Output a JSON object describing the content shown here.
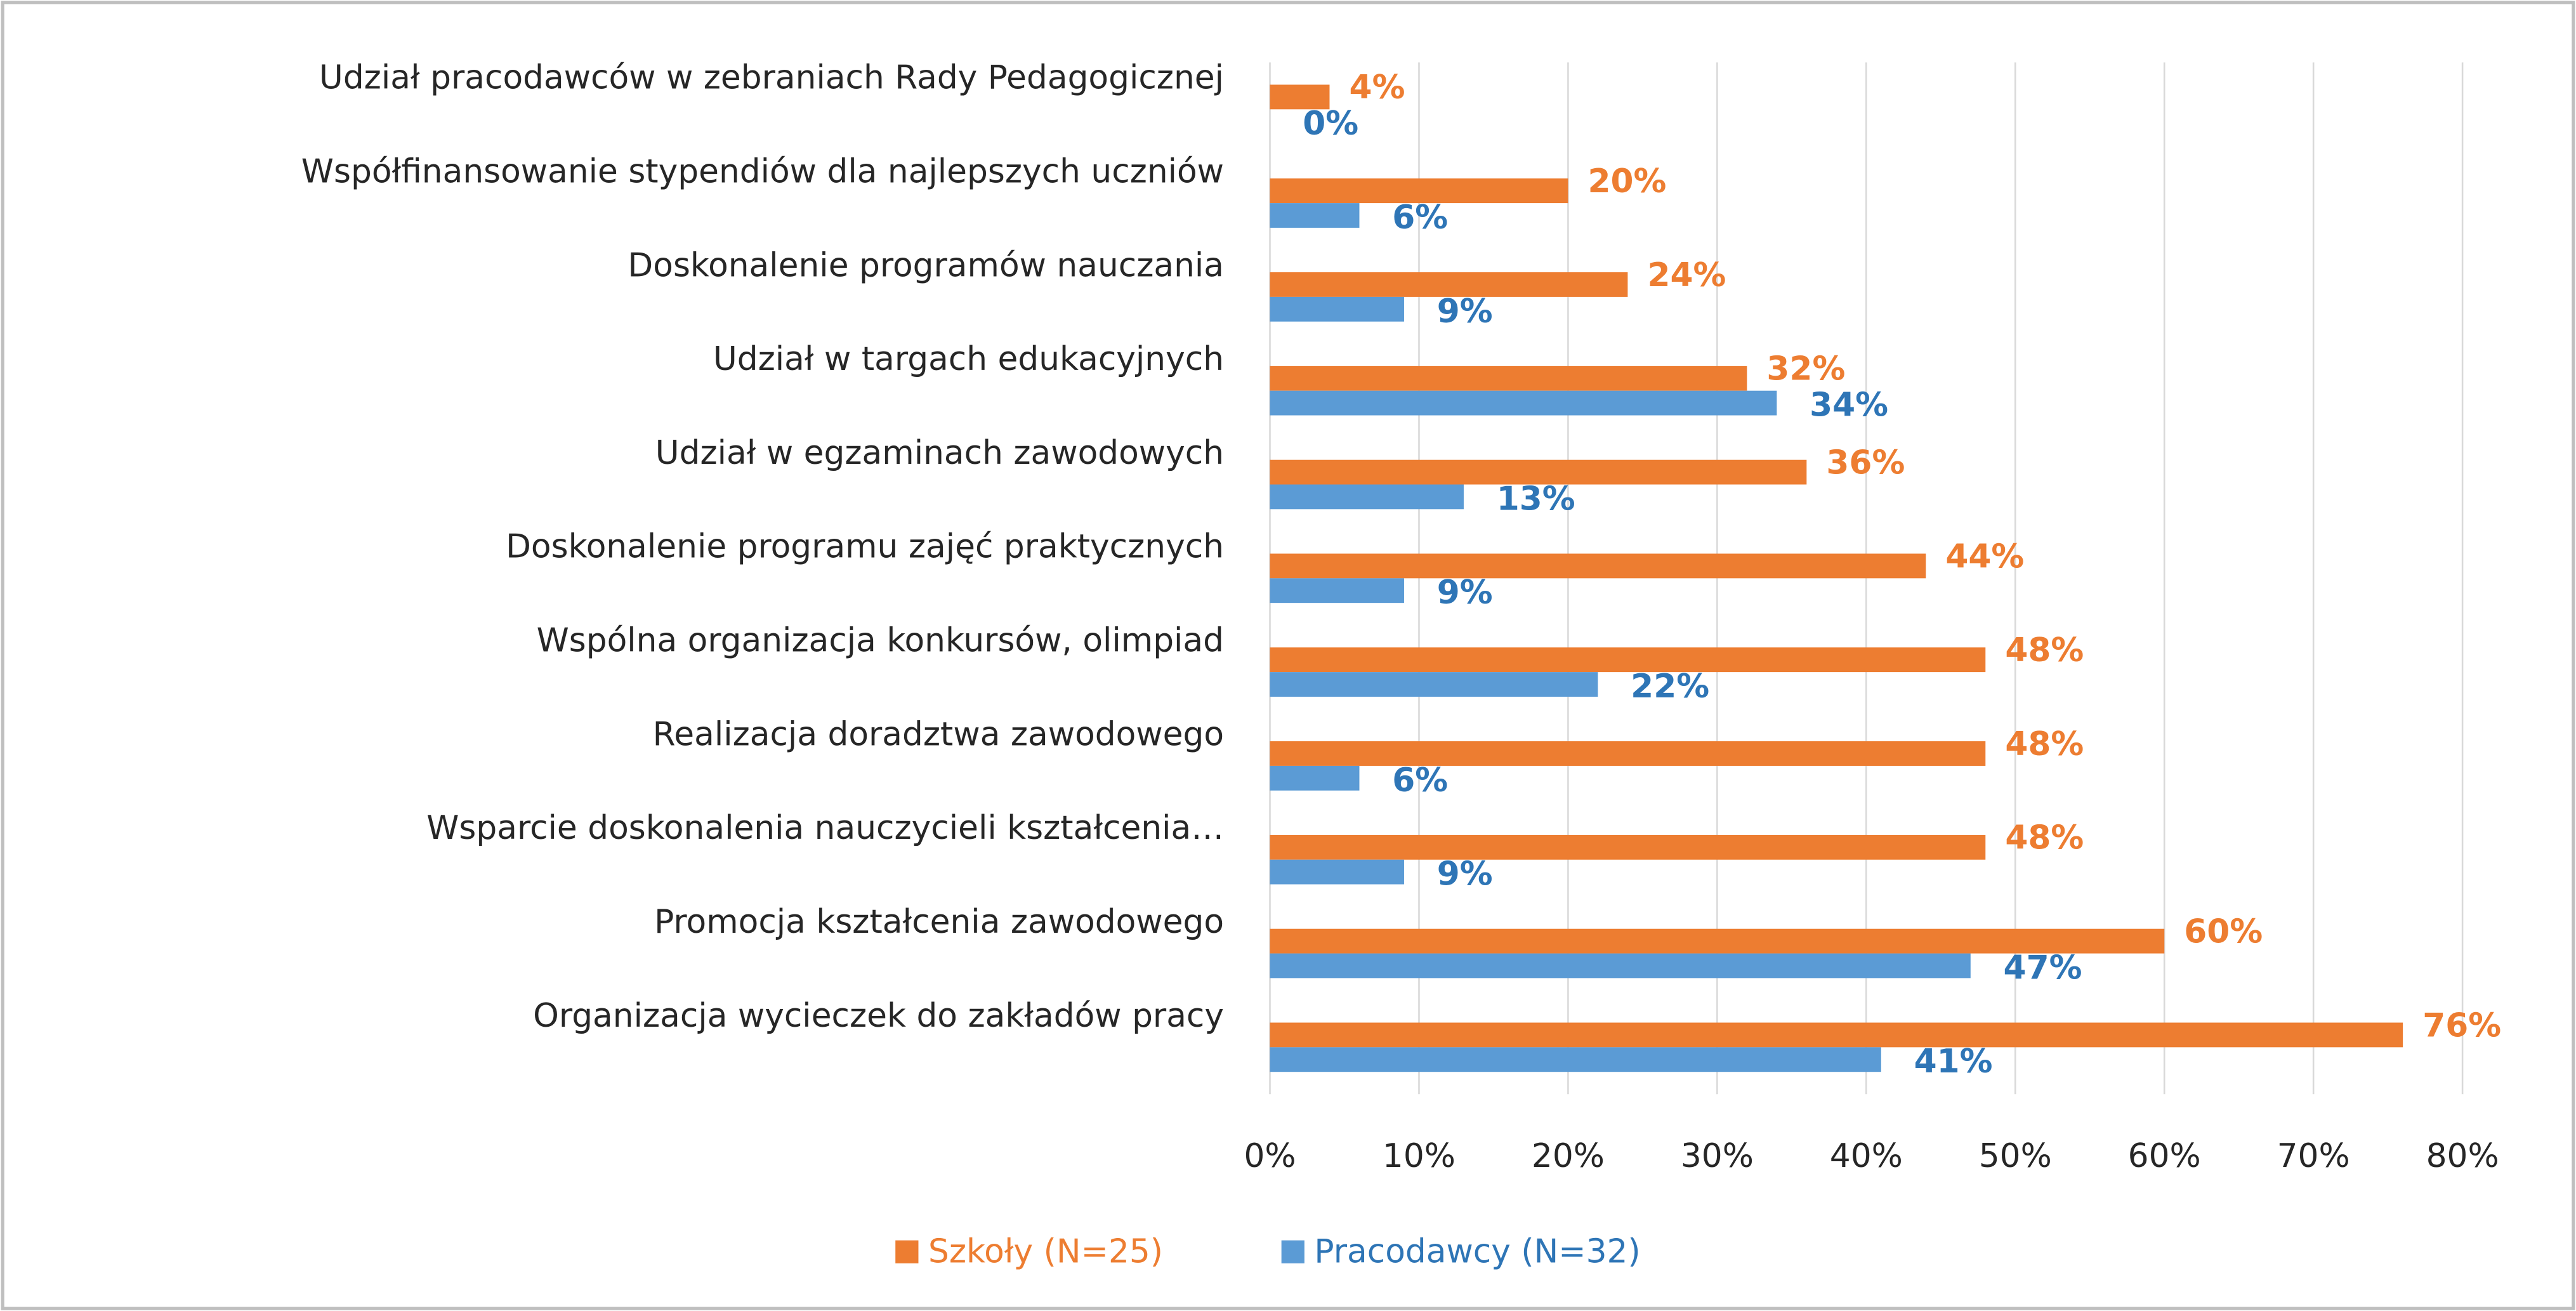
{
  "chart_data": {
    "type": "hbar",
    "categories": [
      "Udział pracodawców w zebraniach Rady Pedagogicznej",
      "Współfinansowanie stypendiów dla najlepszych uczniów",
      "Doskonalenie programów nauczania",
      "Udział w targach edukacyjnych",
      "Udział w egzaminach zawodowych",
      "Doskonalenie programu zajęć praktycznych",
      "Wspólna organizacja konkursów, olimpiad",
      "Realizacja doradztwa zawodowego",
      "Wsparcie doskonalenia nauczycieli kształcenia…",
      "Promocja kształcenia zawodowego",
      "Organizacja wycieczek do zakładów pracy"
    ],
    "series": [
      {
        "name": "Szkoły (N=25)",
        "color": "#ed7d31",
        "label_color": "#ed7d31",
        "values": [
          4,
          20,
          24,
          32,
          36,
          44,
          48,
          48,
          48,
          60,
          76
        ],
        "value_labels": [
          "4%",
          "20%",
          "24%",
          "32%",
          "36%",
          "44%",
          "48%",
          "48%",
          "48%",
          "60%",
          "76%"
        ]
      },
      {
        "name": "Pracodawcy (N=32)",
        "color": "#5b9bd5",
        "label_color": "#2e75b6",
        "values": [
          0,
          6,
          9,
          34,
          13,
          9,
          22,
          6,
          9,
          47,
          41
        ],
        "value_labels": [
          "0%",
          "6%",
          "9%",
          "34%",
          "13%",
          "9%",
          "22%",
          "6%",
          "9%",
          "47%",
          "41%"
        ]
      }
    ],
    "xlim": [
      0,
      80
    ],
    "xticks": [
      {
        "value": 0,
        "label": "0%"
      },
      {
        "value": 10,
        "label": "10%"
      },
      {
        "value": 20,
        "label": "20%"
      },
      {
        "value": 30,
        "label": "30%"
      },
      {
        "value": 40,
        "label": "40%"
      },
      {
        "value": 50,
        "label": "50%"
      },
      {
        "value": 60,
        "label": "60%"
      },
      {
        "value": 70,
        "label": "70%"
      },
      {
        "value": 80,
        "label": "80%"
      }
    ],
    "grid": true,
    "legend": "bottom"
  }
}
